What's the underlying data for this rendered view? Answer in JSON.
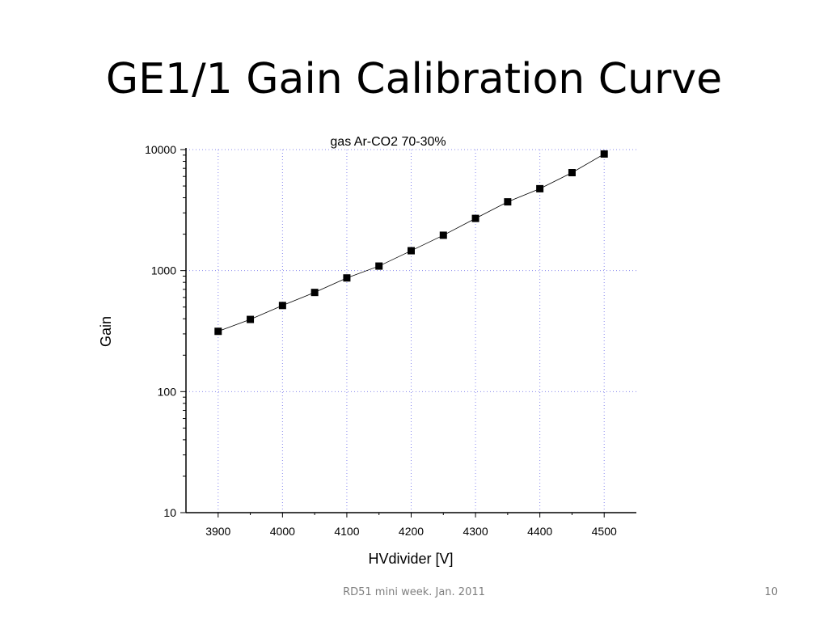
{
  "slide": {
    "title": "GE1/1 Gain Calibration Curve",
    "footer_text": "RD51 mini week. Jan. 2011",
    "page_number": "10"
  },
  "chart_data": {
    "type": "line",
    "title": "gas Ar-CO2 70-30%",
    "xlabel": "HVdivider [V]",
    "ylabel": "Gain",
    "x_scale": "linear",
    "y_scale": "log",
    "xlim": [
      3850,
      4550
    ],
    "ylim": [
      10,
      10000
    ],
    "x_ticks": [
      3900,
      4000,
      4100,
      4200,
      4300,
      4400,
      4500
    ],
    "y_ticks": [
      10,
      100,
      1000,
      10000
    ],
    "grid": true,
    "marker": "square",
    "line_color": "#000000",
    "grid_color": "#8888ee",
    "series": [
      {
        "x": [
          3900,
          3950,
          4000,
          4050,
          4100,
          4150,
          4200,
          4250,
          4300,
          4350,
          4400,
          4450,
          4500
        ],
        "y": [
          315,
          395,
          515,
          660,
          870,
          1090,
          1460,
          1960,
          2700,
          3700,
          4750,
          6450,
          9200
        ]
      }
    ]
  }
}
